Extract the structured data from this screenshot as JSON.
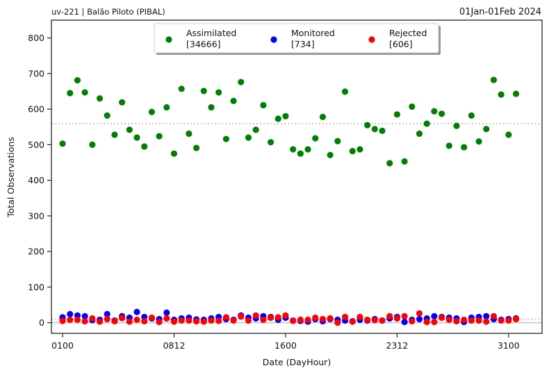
{
  "header": {
    "left": "uv-221  |  Balão Piloto (PIBAL)",
    "right": "01Jan-01Feb 2024"
  },
  "chart_data": {
    "type": "scatter",
    "title": "",
    "xlabel": "Date (DayHour)",
    "ylabel": "Total Observations",
    "ylim": [
      -30,
      850
    ],
    "yticks": [
      0,
      100,
      200,
      300,
      400,
      500,
      600,
      700,
      800
    ],
    "x_units": "6-hourly cycles since 01Jan2024 00Z",
    "xlim": [
      -3,
      129
    ],
    "xticks": [
      {
        "x": 0,
        "label": "0100"
      },
      {
        "x": 30,
        "label": "0812"
      },
      {
        "x": 60,
        "label": "1600"
      },
      {
        "x": 90,
        "label": "2312"
      },
      {
        "x": 120,
        "label": "3100"
      }
    ],
    "grid": false,
    "legend_position": "top-center",
    "reference_lines": [
      {
        "series": "Assimilated",
        "y": 559,
        "style": "dotted"
      },
      {
        "series": "Monitored/Rejected",
        "y": 10,
        "style": "dotted"
      },
      {
        "series": "zero",
        "y": 0,
        "style": "solid"
      }
    ],
    "series": [
      {
        "name": "Assimilated",
        "count_label": "[34666]",
        "color": "#008000",
        "points": [
          [
            0,
            503
          ],
          [
            2,
            645
          ],
          [
            4,
            681
          ],
          [
            6,
            647
          ],
          [
            8,
            500
          ],
          [
            10,
            630
          ],
          [
            12,
            582
          ],
          [
            14,
            528
          ],
          [
            16,
            619
          ],
          [
            18,
            542
          ],
          [
            20,
            520
          ],
          [
            22,
            495
          ],
          [
            24,
            592
          ],
          [
            26,
            524
          ],
          [
            28,
            605
          ],
          [
            30,
            475
          ],
          [
            32,
            657
          ],
          [
            34,
            531
          ],
          [
            36,
            491
          ],
          [
            38,
            651
          ],
          [
            40,
            605
          ],
          [
            42,
            647
          ],
          [
            44,
            516
          ],
          [
            46,
            623
          ],
          [
            48,
            676
          ],
          [
            50,
            520
          ],
          [
            52,
            542
          ],
          [
            54,
            611
          ],
          [
            56,
            507
          ],
          [
            58,
            573
          ],
          [
            60,
            580
          ],
          [
            62,
            487
          ],
          [
            64,
            475
          ],
          [
            66,
            487
          ],
          [
            68,
            518
          ],
          [
            70,
            578
          ],
          [
            72,
            471
          ],
          [
            74,
            510
          ],
          [
            76,
            649
          ],
          [
            78,
            482
          ],
          [
            80,
            487
          ],
          [
            82,
            555
          ],
          [
            84,
            544
          ],
          [
            86,
            539
          ],
          [
            88,
            448
          ],
          [
            90,
            585
          ],
          [
            92,
            453
          ],
          [
            94,
            607
          ],
          [
            96,
            531
          ],
          [
            98,
            559
          ],
          [
            100,
            594
          ],
          [
            102,
            587
          ],
          [
            104,
            497
          ],
          [
            106,
            553
          ],
          [
            108,
            493
          ],
          [
            110,
            582
          ],
          [
            112,
            509
          ],
          [
            114,
            544
          ],
          [
            116,
            682
          ],
          [
            118,
            641
          ],
          [
            120,
            528
          ],
          [
            122,
            643
          ]
        ]
      },
      {
        "name": "Monitored",
        "count_label": "[734]",
        "color": "#0000ff",
        "points": [
          [
            0,
            15
          ],
          [
            2,
            24
          ],
          [
            4,
            20
          ],
          [
            6,
            18
          ],
          [
            8,
            7
          ],
          [
            10,
            8
          ],
          [
            12,
            24
          ],
          [
            14,
            6
          ],
          [
            16,
            18
          ],
          [
            18,
            14
          ],
          [
            20,
            30
          ],
          [
            22,
            16
          ],
          [
            24,
            12
          ],
          [
            26,
            10
          ],
          [
            28,
            28
          ],
          [
            30,
            8
          ],
          [
            32,
            12
          ],
          [
            34,
            14
          ],
          [
            36,
            9
          ],
          [
            38,
            8
          ],
          [
            40,
            12
          ],
          [
            42,
            16
          ],
          [
            44,
            10
          ],
          [
            46,
            8
          ],
          [
            48,
            20
          ],
          [
            50,
            14
          ],
          [
            52,
            12
          ],
          [
            54,
            18
          ],
          [
            56,
            16
          ],
          [
            58,
            8
          ],
          [
            60,
            14
          ],
          [
            62,
            6
          ],
          [
            64,
            5
          ],
          [
            66,
            3
          ],
          [
            68,
            10
          ],
          [
            70,
            4
          ],
          [
            72,
            10
          ],
          [
            74,
            8
          ],
          [
            76,
            6
          ],
          [
            78,
            4
          ],
          [
            80,
            8
          ],
          [
            82,
            6
          ],
          [
            84,
            10
          ],
          [
            86,
            6
          ],
          [
            88,
            12
          ],
          [
            90,
            16
          ],
          [
            92,
            2
          ],
          [
            94,
            8
          ],
          [
            96,
            10
          ],
          [
            98,
            12
          ],
          [
            100,
            18
          ],
          [
            102,
            16
          ],
          [
            104,
            14
          ],
          [
            106,
            12
          ],
          [
            108,
            2
          ],
          [
            110,
            14
          ],
          [
            112,
            16
          ],
          [
            114,
            18
          ],
          [
            116,
            10
          ],
          [
            118,
            8
          ],
          [
            120,
            10
          ],
          [
            122,
            12
          ]
        ]
      },
      {
        "name": "Rejected",
        "count_label": "[606]",
        "color": "#ff0000",
        "points": [
          [
            0,
            5
          ],
          [
            2,
            8
          ],
          [
            4,
            8
          ],
          [
            6,
            4
          ],
          [
            8,
            12
          ],
          [
            10,
            3
          ],
          [
            12,
            10
          ],
          [
            14,
            4
          ],
          [
            16,
            13
          ],
          [
            18,
            3
          ],
          [
            20,
            8
          ],
          [
            22,
            4
          ],
          [
            24,
            14
          ],
          [
            26,
            2
          ],
          [
            28,
            12
          ],
          [
            30,
            3
          ],
          [
            32,
            6
          ],
          [
            34,
            6
          ],
          [
            36,
            4
          ],
          [
            38,
            3
          ],
          [
            40,
            6
          ],
          [
            42,
            5
          ],
          [
            44,
            15
          ],
          [
            46,
            6
          ],
          [
            48,
            17
          ],
          [
            50,
            6
          ],
          [
            52,
            20
          ],
          [
            54,
            8
          ],
          [
            56,
            14
          ],
          [
            58,
            15
          ],
          [
            60,
            20
          ],
          [
            62,
            5
          ],
          [
            64,
            8
          ],
          [
            66,
            8
          ],
          [
            68,
            14
          ],
          [
            70,
            10
          ],
          [
            72,
            12
          ],
          [
            74,
            0
          ],
          [
            76,
            16
          ],
          [
            78,
            3
          ],
          [
            80,
            16
          ],
          [
            82,
            8
          ],
          [
            84,
            7
          ],
          [
            86,
            6
          ],
          [
            88,
            18
          ],
          [
            90,
            12
          ],
          [
            92,
            18
          ],
          [
            94,
            4
          ],
          [
            96,
            26
          ],
          [
            98,
            2
          ],
          [
            100,
            2
          ],
          [
            102,
            14
          ],
          [
            104,
            8
          ],
          [
            106,
            4
          ],
          [
            108,
            8
          ],
          [
            110,
            6
          ],
          [
            112,
            6
          ],
          [
            114,
            3
          ],
          [
            116,
            18
          ],
          [
            118,
            6
          ],
          [
            120,
            6
          ],
          [
            122,
            10
          ]
        ]
      }
    ]
  }
}
